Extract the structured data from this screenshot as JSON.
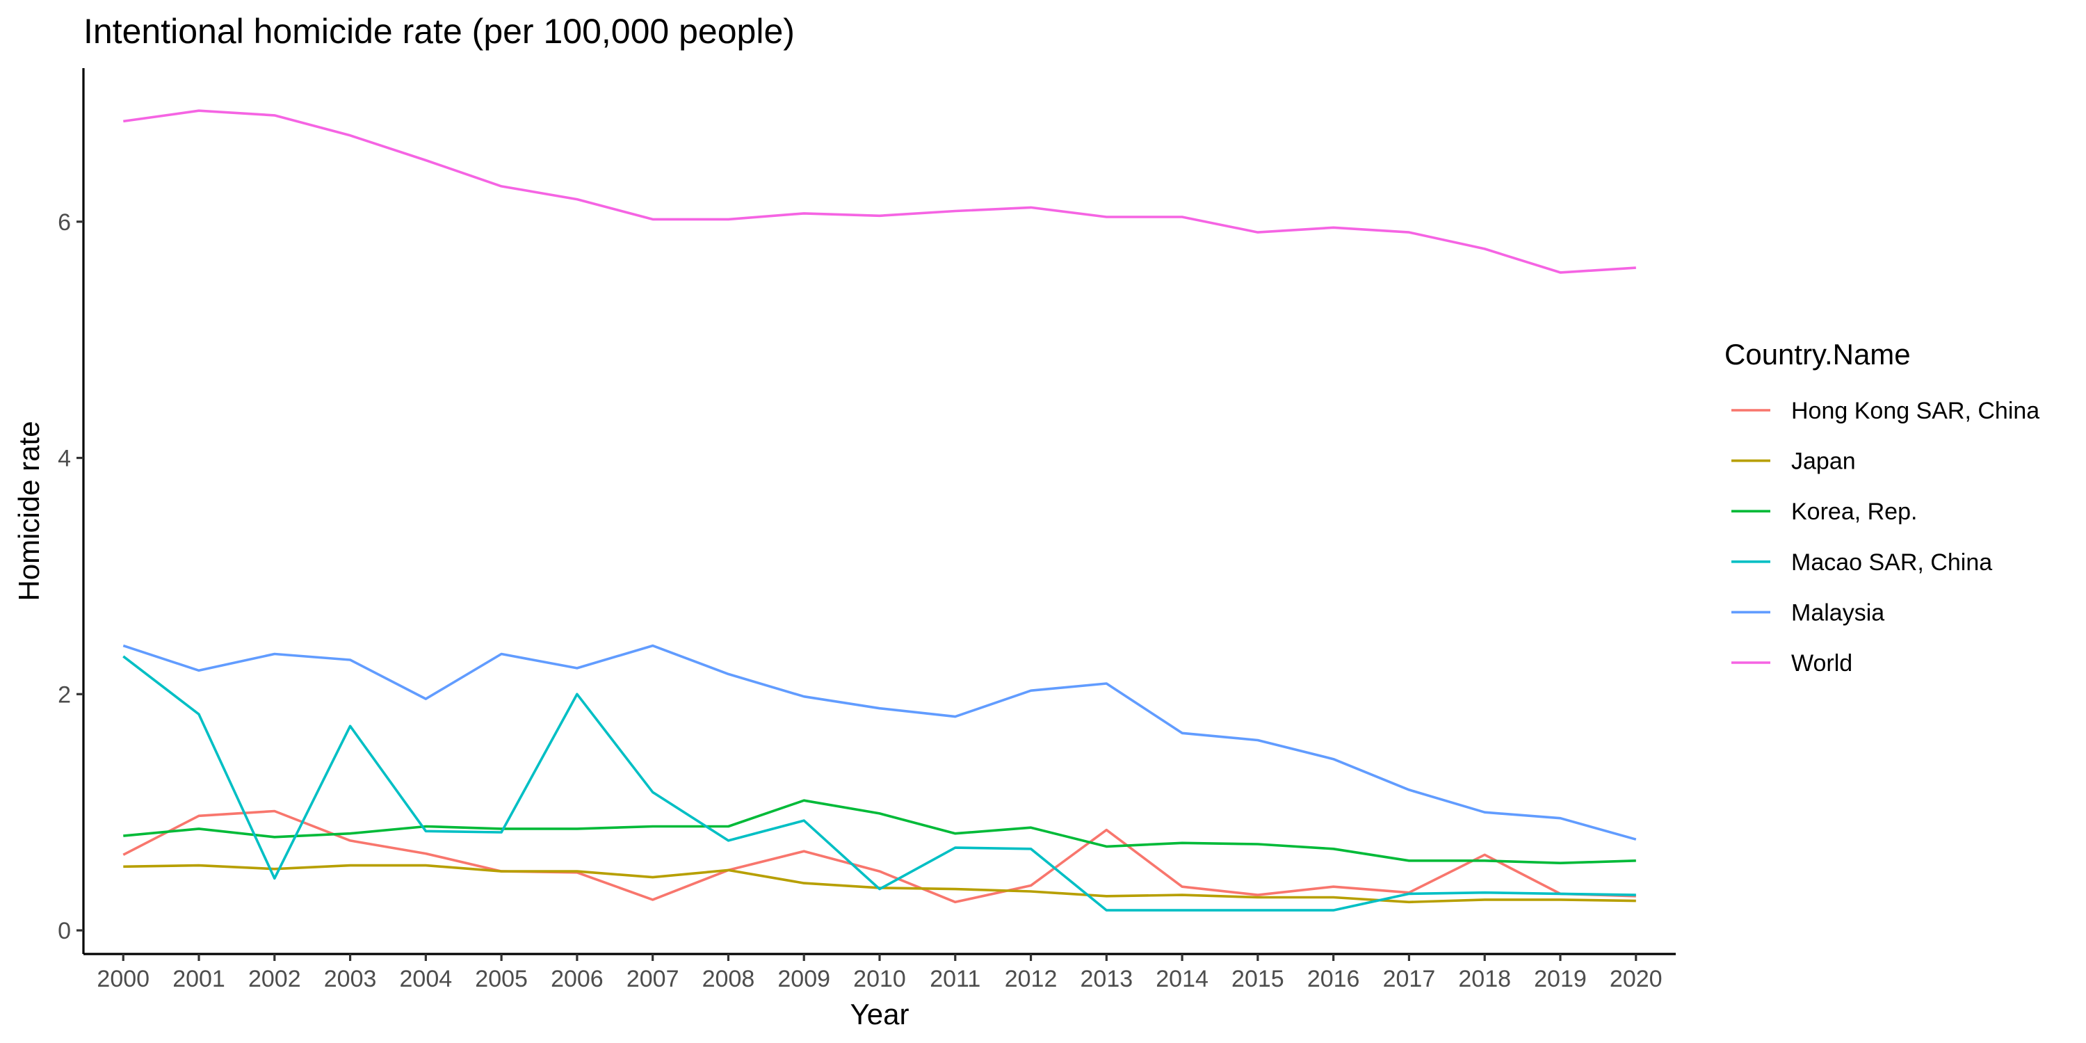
{
  "chart_data": {
    "type": "line",
    "title": "Intentional homicide rate (per 100,000 people)",
    "xlabel": "Year",
    "ylabel": "Homicide rate",
    "x": [
      "2000",
      "2001",
      "2002",
      "2003",
      "2004",
      "2005",
      "2006",
      "2007",
      "2008",
      "2009",
      "2010",
      "2011",
      "2012",
      "2013",
      "2014",
      "2015",
      "2016",
      "2017",
      "2018",
      "2019",
      "2020"
    ],
    "y_ticks": [
      0,
      2,
      4,
      6
    ],
    "ylim": [
      -0.2,
      7.3
    ],
    "grid": false,
    "legend_position": "right",
    "legend_title": "Country.Name",
    "series": [
      {
        "name": "Hong Kong SAR, China",
        "color": "#F8766D",
        "values": [
          0.64,
          0.97,
          1.01,
          0.76,
          0.65,
          0.5,
          0.49,
          0.26,
          0.51,
          0.67,
          0.5,
          0.24,
          0.38,
          0.85,
          0.37,
          0.3,
          0.37,
          0.32,
          0.64,
          0.31,
          0.29
        ]
      },
      {
        "name": "Japan",
        "color": "#B79F00",
        "values": [
          0.54,
          0.55,
          0.52,
          0.55,
          0.55,
          0.5,
          0.5,
          0.45,
          0.51,
          0.4,
          0.36,
          0.35,
          0.33,
          0.29,
          0.3,
          0.28,
          0.28,
          0.24,
          0.26,
          0.26,
          0.25
        ]
      },
      {
        "name": "Korea, Rep.",
        "color": "#00BA38",
        "values": [
          0.8,
          0.86,
          0.79,
          0.82,
          0.88,
          0.86,
          0.86,
          0.88,
          0.88,
          1.1,
          0.99,
          0.82,
          0.87,
          0.71,
          0.74,
          0.73,
          0.69,
          0.59,
          0.59,
          0.57,
          0.59
        ]
      },
      {
        "name": "Macao SAR, China",
        "color": "#00BFC4",
        "values": [
          2.32,
          1.83,
          0.44,
          1.73,
          0.84,
          0.83,
          2.0,
          1.17,
          0.76,
          0.93,
          0.35,
          0.7,
          0.69,
          0.17,
          0.17,
          0.17,
          0.17,
          0.31,
          0.32,
          0.31,
          0.3
        ]
      },
      {
        "name": "Malaysia",
        "color": "#619CFF",
        "values": [
          2.41,
          2.2,
          2.34,
          2.29,
          1.96,
          2.34,
          2.22,
          2.41,
          2.17,
          1.98,
          1.88,
          1.81,
          2.03,
          2.09,
          1.67,
          1.61,
          1.45,
          1.19,
          1.0,
          0.95,
          0.77
        ]
      },
      {
        "name": "World",
        "color": "#F564E3",
        "values": [
          6.85,
          6.94,
          6.9,
          6.73,
          6.52,
          6.3,
          6.19,
          6.02,
          6.02,
          6.07,
          6.05,
          6.09,
          6.12,
          6.04,
          6.04,
          5.91,
          5.95,
          5.91,
          5.77,
          5.57,
          5.61
        ]
      }
    ]
  }
}
